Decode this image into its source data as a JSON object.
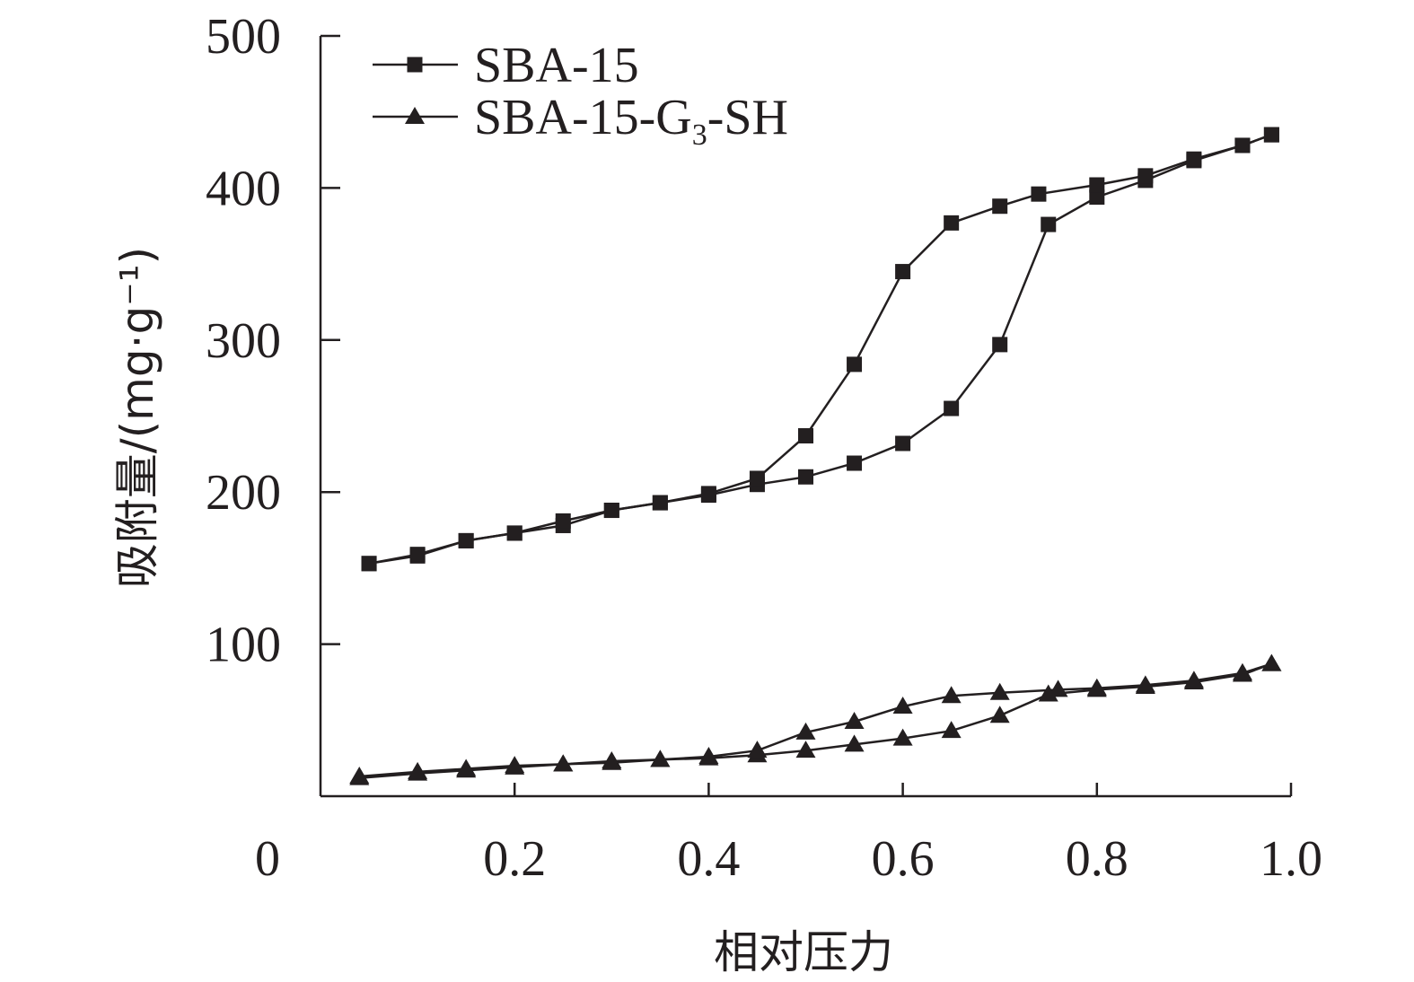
{
  "chart_data": {
    "type": "line",
    "xlabel": "相对压力",
    "ylabel": "吸附量/(mg·g⁻¹)",
    "xlim": [
      0,
      1.0
    ],
    "ylim": [
      0,
      500
    ],
    "x_origin_label": "0",
    "x_ticks": [
      {
        "value": 0.2,
        "label": "0.2"
      },
      {
        "value": 0.4,
        "label": "0.4"
      },
      {
        "value": 0.6,
        "label": "0.6"
      },
      {
        "value": 0.8,
        "label": "0.8"
      },
      {
        "value": 1.0,
        "label": "1.0"
      }
    ],
    "y_ticks": [
      {
        "value": 100,
        "label": "100"
      },
      {
        "value": 200,
        "label": "200"
      },
      {
        "value": 300,
        "label": "300"
      },
      {
        "value": 400,
        "label": "400"
      },
      {
        "value": 500,
        "label": "500"
      }
    ],
    "legend": {
      "position": "top-left",
      "entries": [
        {
          "series": 0,
          "marker": "square",
          "text": "SBA-15",
          "sub": "",
          "tail": ""
        },
        {
          "series": 1,
          "marker": "triangle",
          "text": "SBA-15-G",
          "sub": "3",
          "tail": "-SH"
        }
      ]
    },
    "series": [
      {
        "name": "SBA-15",
        "marker": "square",
        "color": "#231f20",
        "branches": [
          {
            "x": [
              0.05,
              0.1,
              0.15,
              0.2,
              0.25,
              0.3,
              0.35,
              0.4,
              0.45,
              0.5,
              0.55,
              0.6,
              0.65,
              0.7,
              0.75,
              0.8,
              0.85,
              0.9,
              0.95,
              0.98
            ],
            "y": [
              153,
              158,
              168,
              173,
              178,
              188,
              193,
              198,
              205,
              210,
              219,
              232,
              255,
              297,
              376,
              394,
              405,
              418,
              428,
              435
            ]
          },
          {
            "x": [
              0.98,
              0.95,
              0.9,
              0.85,
              0.8,
              0.74,
              0.7,
              0.65,
              0.6,
              0.55,
              0.5,
              0.45,
              0.4,
              0.35,
              0.3,
              0.25,
              0.2,
              0.15,
              0.1,
              0.05
            ],
            "y": [
              435,
              428,
              419,
              408,
              402,
              396,
              388,
              377,
              345,
              284,
              237,
              209,
              199,
              193,
              188,
              181,
              173,
              168,
              159,
              153
            ]
          }
        ]
      },
      {
        "name": "SBA-15-G₃-SH",
        "marker": "triangle",
        "color": "#231f20",
        "branches": [
          {
            "x": [
              0.04,
              0.1,
              0.15,
              0.2,
              0.25,
              0.3,
              0.35,
              0.4,
              0.45,
              0.5,
              0.55,
              0.6,
              0.65,
              0.7,
              0.75,
              0.8,
              0.85,
              0.9,
              0.95,
              0.98
            ],
            "y": [
              12,
              15,
              17,
              19,
              21,
              23,
              24,
              25,
              27,
              30,
              34,
              38,
              43,
              53,
              67,
              70,
              72,
              75,
              80,
              87
            ]
          },
          {
            "x": [
              0.98,
              0.95,
              0.9,
              0.85,
              0.8,
              0.76,
              0.7,
              0.65,
              0.6,
              0.55,
              0.5,
              0.45,
              0.4,
              0.35,
              0.3,
              0.25,
              0.2,
              0.15,
              0.1,
              0.04
            ],
            "y": [
              87,
              81,
              76,
              73,
              71,
              70,
              68,
              66,
              59,
              49,
              42,
              30,
              26,
              24,
              22,
              21,
              20,
              18,
              16,
              13
            ]
          }
        ]
      }
    ]
  }
}
